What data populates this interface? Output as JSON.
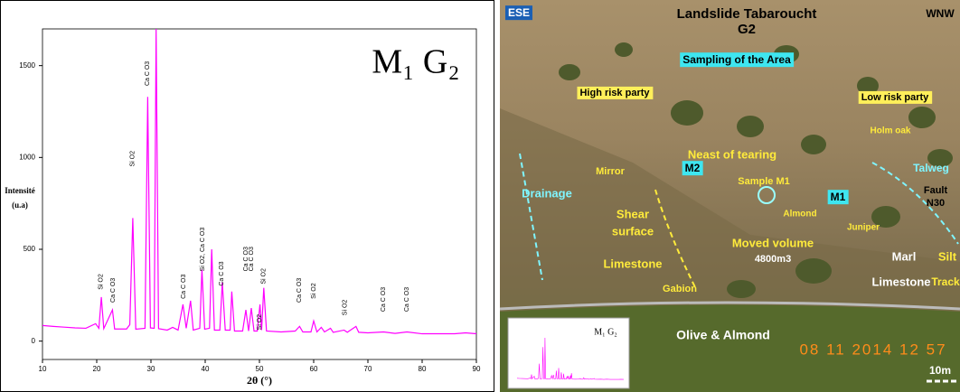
{
  "chart_data": {
    "type": "line",
    "annotation_title": "M₁ G₂",
    "xlabel": "2θ (°)",
    "ylabel": "Intensité",
    "ylabel_unit": "(u.a)",
    "color": "#ff00ff",
    "xlim": [
      10,
      90
    ],
    "xticks": [
      10,
      20,
      30,
      40,
      50,
      60,
      70,
      80,
      90
    ],
    "ylim": [
      -100,
      1700
    ],
    "yticks": [
      0,
      500,
      1000,
      1500
    ],
    "x": [
      10,
      12,
      14,
      16,
      18,
      19.8,
      20.4,
      20.85,
      21.3,
      22.9,
      23.3,
      25.5,
      26.1,
      26.65,
      27.2,
      28.9,
      29.4,
      29.9,
      30.6,
      30.95,
      31.4,
      33,
      34,
      35,
      35.9,
      36.5,
      37.3,
      37.8,
      39.0,
      39.4,
      39.9,
      40.8,
      41.2,
      41.7,
      42.7,
      43.15,
      43.7,
      44.6,
      44.9,
      45.4,
      46.9,
      47.5,
      48.0,
      48.5,
      49.0,
      49.6,
      50.1,
      50.4,
      50.8,
      51.3,
      54,
      56.6,
      57.4,
      58,
      59.5,
      60.0,
      60.6,
      61.4,
      62,
      63.1,
      63.6,
      65.6,
      66.2,
      67.8,
      68.3,
      70,
      72.9,
      75,
      77.2,
      80,
      83,
      86,
      88,
      90
    ],
    "values": [
      85,
      80,
      76,
      72,
      70,
      95,
      70,
      240,
      68,
      170,
      66,
      66,
      90,
      670,
      65,
      70,
      1330,
      72,
      70,
      1700,
      68,
      60,
      75,
      60,
      200,
      70,
      220,
      60,
      70,
      390,
      65,
      70,
      500,
      60,
      60,
      320,
      60,
      60,
      270,
      55,
      55,
      170,
      55,
      180,
      55,
      55,
      200,
      60,
      290,
      55,
      50,
      55,
      80,
      50,
      50,
      110,
      50,
      75,
      50,
      70,
      48,
      60,
      48,
      80,
      48,
      45,
      50,
      42,
      50,
      40,
      40,
      40,
      45,
      40
    ],
    "annotations": [
      {
        "x": 20.8,
        "y": 280,
        "text": "Si O2"
      },
      {
        "x": 23.0,
        "y": 210,
        "text": "Ca C O3"
      },
      {
        "x": 26.6,
        "y": 950,
        "text": "Si O2"
      },
      {
        "x": 29.4,
        "y": 1390,
        "text": "Ca C O3"
      },
      {
        "x": 36.0,
        "y": 230,
        "text": "Ca C O3"
      },
      {
        "x": 39.5,
        "y": 380,
        "text": "Si O2, Ca C O3"
      },
      {
        "x": 43.0,
        "y": 300,
        "text": "Ca C O3"
      },
      {
        "x": 47.5,
        "y": 380,
        "text": "Ca C O3"
      },
      {
        "x": 48.5,
        "y": 380,
        "text": "Ca C O3"
      },
      {
        "x": 50.0,
        "y": 60,
        "text": "Si O2"
      },
      {
        "x": 50.8,
        "y": 310,
        "text": "Si O2"
      },
      {
        "x": 57.4,
        "y": 210,
        "text": "Ca C O3"
      },
      {
        "x": 60.0,
        "y": 230,
        "text": "Si O2"
      },
      {
        "x": 65.8,
        "y": 140,
        "text": "Si O2"
      },
      {
        "x": 72.9,
        "y": 160,
        "text": "Ca C O3"
      },
      {
        "x": 77.2,
        "y": 160,
        "text": "Ca C O3"
      }
    ]
  },
  "photo": {
    "labels": [
      "ESE",
      "Landslide Tabaroucht",
      "G2",
      "WNW",
      "Sampling of the Area",
      "High risk party",
      "Low risk party",
      "Holm oak",
      "Neast of tearing",
      "Mirror",
      "M2",
      "Sample M1",
      "Talweg",
      "Fault",
      "N30",
      "Drainage",
      "M1",
      "Almond",
      "Juniper",
      "Shear",
      "surface",
      "Moved volume",
      "4800m3",
      "Marl",
      "Silt",
      "Limestone",
      "Limestone",
      "Track",
      "Gabion",
      "Olive & Almond",
      "08 11 2014 12 57",
      "10m"
    ]
  }
}
